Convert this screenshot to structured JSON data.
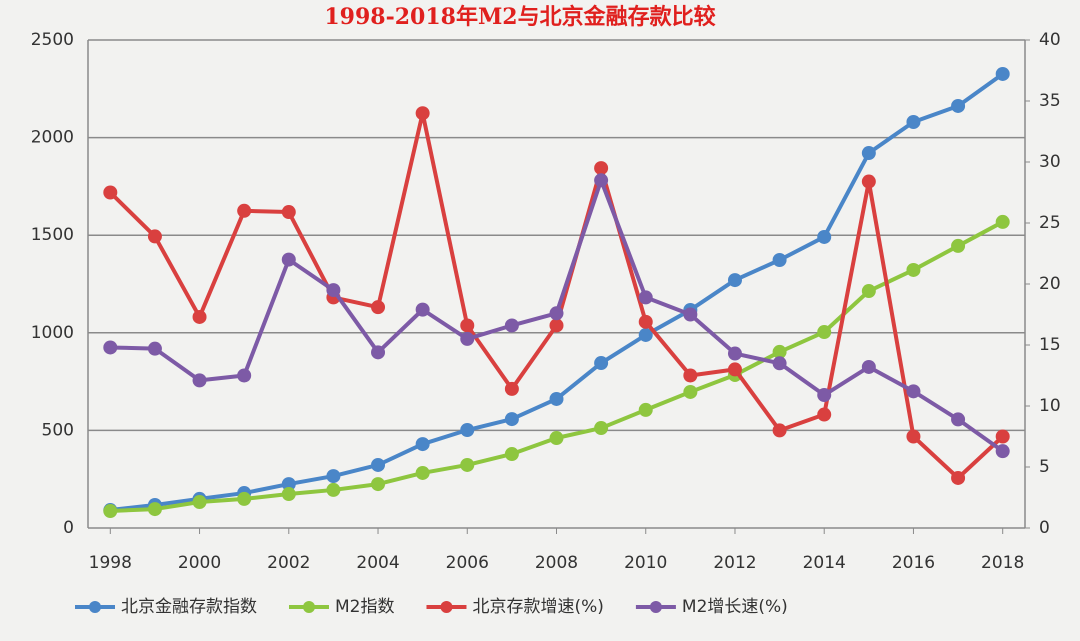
{
  "chart_data": {
    "type": "line",
    "title": "1998-2018年M2与北京金融存款比较",
    "x": [
      1998,
      1999,
      2000,
      2001,
      2002,
      2003,
      2004,
      2005,
      2006,
      2007,
      2008,
      2009,
      2010,
      2011,
      2012,
      2013,
      2014,
      2015,
      2016,
      2017,
      2018
    ],
    "xlim": [
      1997.5,
      2018.5
    ],
    "xticks": [
      1998,
      2000,
      2002,
      2004,
      2006,
      2008,
      2010,
      2012,
      2014,
      2016,
      2018
    ],
    "ylim": [
      0,
      2500
    ],
    "yticks": [
      0,
      500,
      1000,
      1500,
      2000,
      2500
    ],
    "y2lim": [
      0,
      40
    ],
    "y2ticks": [
      0,
      5,
      10,
      15,
      20,
      25,
      30,
      35,
      40
    ],
    "grid": true,
    "legend": "bottom",
    "series": [
      {
        "name": "北京金融存款指数",
        "color": "#4a86c8",
        "values": [
          92,
          118,
          149,
          179,
          225,
          266,
          323,
          430,
          502,
          558,
          661,
          845,
          989,
          1117,
          1270,
          1373,
          1491,
          1921,
          2080,
          2162,
          2326
        ]
      },
      {
        "name": "M2指数",
        "color": "#8ec63f",
        "values": [
          87,
          97,
          133,
          149,
          174,
          195,
          225,
          282,
          323,
          379,
          461,
          512,
          605,
          697,
          784,
          902,
          1004,
          1214,
          1322,
          1445,
          1568
        ]
      },
      {
        "name": "北京存款增速(%)",
        "color": "#d9403f",
        "axis": "y2",
        "values": [
          27.5,
          23.9,
          17.3,
          26.0,
          25.9,
          18.9,
          18.1,
          34.0,
          16.6,
          11.4,
          16.6,
          29.5,
          16.9,
          12.5,
          13.0,
          8.0,
          9.3,
          28.4,
          7.5,
          4.1,
          7.5
        ]
      },
      {
        "name": "M2增长速(%)",
        "color": "#7d5aa6",
        "axis": "y2",
        "values": [
          14.8,
          14.7,
          12.1,
          12.5,
          22.0,
          19.5,
          14.4,
          17.9,
          15.5,
          16.6,
          17.6,
          28.5,
          18.9,
          17.5,
          14.3,
          13.5,
          10.9,
          13.2,
          11.2,
          8.9,
          6.3
        ]
      }
    ]
  }
}
